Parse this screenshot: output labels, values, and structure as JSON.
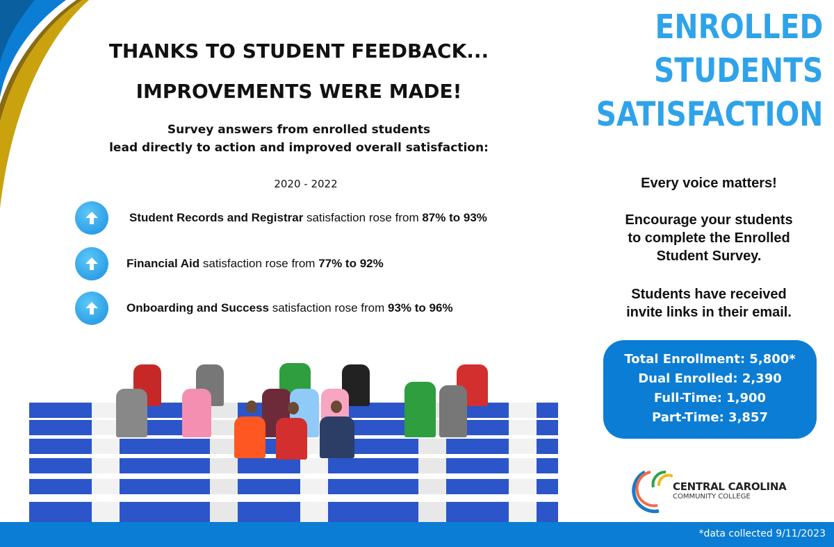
{
  "headline": {
    "line1": "THANKS TO STUDENT FEEDBACK...",
    "line2": "IMPROVEMENTS WERE MADE!"
  },
  "subtitle": {
    "line1": "Survey answers from enrolled students",
    "line2": "lead directly to action and improved overall satisfaction:"
  },
  "years": "2020 - 2022",
  "bullets": [
    {
      "icon": "arrow-up-icon",
      "bold": "Student Records and Registrar",
      "text": " satisfaction rose from ",
      "change": "87% to 93%"
    },
    {
      "icon": "arrow-up-icon",
      "bold": "Financial Aid",
      "text": " satisfaction rose from ",
      "change": "77% to 92%"
    },
    {
      "icon": "arrow-up-icon",
      "bold": "Onboarding and Success",
      "text": " satisfaction rose from ",
      "change": "93% to 96%"
    }
  ],
  "right": {
    "title": [
      "ENROLLED",
      "STUDENTS",
      "SATISFACTION"
    ],
    "voice": "Every voice matters!",
    "encourage": [
      "Encourage your students",
      "to complete the Enrolled",
      "Student Survey."
    ],
    "received": [
      "Students have received",
      "invite links in their email."
    ]
  },
  "stats": [
    "Total Enrollment: 5,800*",
    "Dual Enrolled: 2,390",
    "Full-Time: 1,900",
    "Part-Time: 3,857"
  ],
  "logo": {
    "line1": "CENTRAL CAROLINA",
    "line2": "COMMUNITY COLLEGE"
  },
  "footer": {
    "note": "*data collected 9/11/2023"
  },
  "colors": {
    "blue": "#0b7dd4",
    "title_blue": "#2fa3ea",
    "gold": "#c9a20e"
  }
}
